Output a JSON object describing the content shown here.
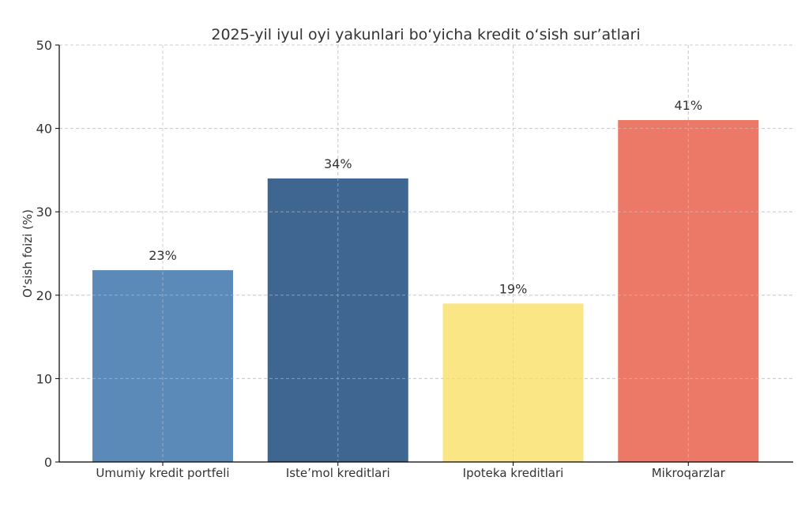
{
  "chart_data": {
    "type": "bar",
    "title": "2025-yil iyul oyi yakunlari bo‘yicha kredit o‘sish sur’atlari",
    "xlabel": "",
    "ylabel": "O‘sish foizi (%)",
    "ylim": [
      0,
      50
    ],
    "yticks": [
      0,
      10,
      20,
      30,
      40,
      50
    ],
    "grid": true,
    "categories": [
      "Umumiy kredit portfeli",
      "Iste’mol kreditlari",
      "Ipoteka kreditlari",
      "Mikroqarzlar"
    ],
    "values": [
      23,
      34,
      19,
      41
    ],
    "value_labels": [
      "23%",
      "34%",
      "19%",
      "41%"
    ],
    "colors": [
      "#5b89b8",
      "#3f6690",
      "#fae685",
      "#ec7867"
    ]
  }
}
